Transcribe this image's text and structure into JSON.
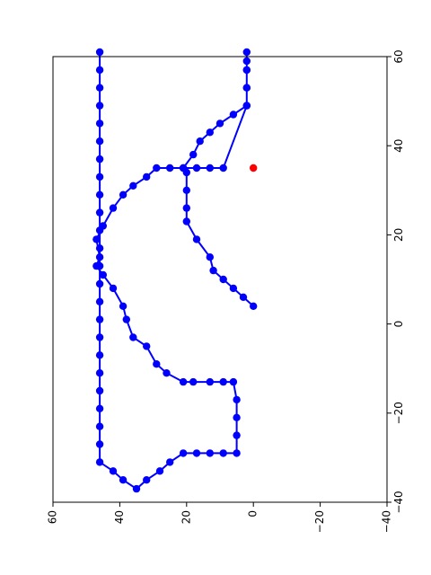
{
  "chart_data": {
    "type": "line",
    "title": "",
    "xlabel": "",
    "ylabel": "",
    "orientation": "rotated-90",
    "horizontal_axis": {
      "position": "bottom",
      "ticks": [
        -40,
        -20,
        0,
        20,
        40,
        60
      ],
      "tick_labels": [
        "−40",
        "−20",
        "0",
        "20",
        "40",
        "60"
      ],
      "range": [
        -40,
        60
      ]
    },
    "vertical_axis": {
      "position": "right",
      "label_rotation": "rotated",
      "ticks": [
        60,
        40,
        20,
        0,
        -20,
        -40
      ],
      "tick_labels": [
        "60",
        "40",
        "20",
        "0",
        "−20",
        "−40"
      ],
      "range": [
        60,
        -40
      ]
    },
    "grid": false,
    "series": [
      {
        "color": "#0000ff",
        "marker": "circle",
        "points": [
          [
            4,
            0
          ],
          [
            6,
            3
          ],
          [
            8,
            6
          ],
          [
            10,
            9
          ],
          [
            12,
            12
          ],
          [
            15,
            13
          ],
          [
            19,
            17
          ],
          [
            23,
            20
          ],
          [
            26,
            20
          ],
          [
            30,
            20
          ],
          [
            34,
            20
          ],
          [
            35,
            21
          ],
          [
            38,
            18
          ],
          [
            41,
            16
          ],
          [
            43,
            13
          ],
          [
            45,
            10
          ],
          [
            47,
            6
          ],
          [
            49,
            2
          ],
          [
            53,
            2
          ],
          [
            57,
            2
          ],
          [
            61,
            2
          ],
          [
            59,
            2
          ],
          [
            57,
            2
          ],
          [
            53,
            2
          ],
          [
            49,
            2
          ],
          [
            35,
            9
          ],
          [
            35,
            13
          ],
          [
            35,
            17
          ],
          [
            35,
            21
          ],
          [
            35,
            25
          ],
          [
            35,
            29
          ],
          [
            33,
            32
          ],
          [
            31,
            36
          ],
          [
            29,
            39
          ],
          [
            26,
            42
          ],
          [
            22,
            45
          ],
          [
            19,
            47
          ],
          [
            15,
            46
          ],
          [
            13,
            47
          ],
          [
            11,
            45
          ],
          [
            8,
            42
          ],
          [
            4,
            39
          ],
          [
            1,
            38
          ],
          [
            -3,
            36
          ],
          [
            -5,
            32
          ],
          [
            -9,
            29
          ],
          [
            -11,
            26
          ],
          [
            -13,
            21
          ],
          [
            -13,
            18
          ],
          [
            -13,
            13
          ],
          [
            -13,
            9
          ],
          [
            -13,
            6
          ],
          [
            -17,
            5
          ],
          [
            -21,
            5
          ],
          [
            -25,
            5
          ],
          [
            -29,
            5
          ],
          [
            -29,
            9
          ],
          [
            -29,
            13
          ],
          [
            -29,
            17
          ],
          [
            -29,
            21
          ],
          [
            -31,
            25
          ],
          [
            -33,
            28
          ],
          [
            -35,
            32
          ],
          [
            -37,
            35
          ],
          [
            -35,
            39
          ],
          [
            -33,
            42
          ],
          [
            -31,
            46
          ],
          [
            -27,
            46
          ],
          [
            -23,
            46
          ],
          [
            -19,
            46
          ],
          [
            -15,
            46
          ],
          [
            -11,
            46
          ],
          [
            -7,
            46
          ],
          [
            -3,
            46
          ],
          [
            1,
            46
          ],
          [
            5,
            46
          ],
          [
            9,
            46
          ],
          [
            13,
            46
          ],
          [
            17,
            46
          ],
          [
            21,
            46
          ],
          [
            25,
            46
          ],
          [
            29,
            46
          ],
          [
            33,
            46
          ],
          [
            37,
            46
          ],
          [
            41,
            46
          ],
          [
            45,
            46
          ],
          [
            49,
            46
          ],
          [
            53,
            46
          ],
          [
            57,
            46
          ],
          [
            61,
            46
          ]
        ]
      }
    ],
    "highlight_points": [
      {
        "color": "#ff0000",
        "point": [
          35,
          0
        ]
      }
    ]
  }
}
